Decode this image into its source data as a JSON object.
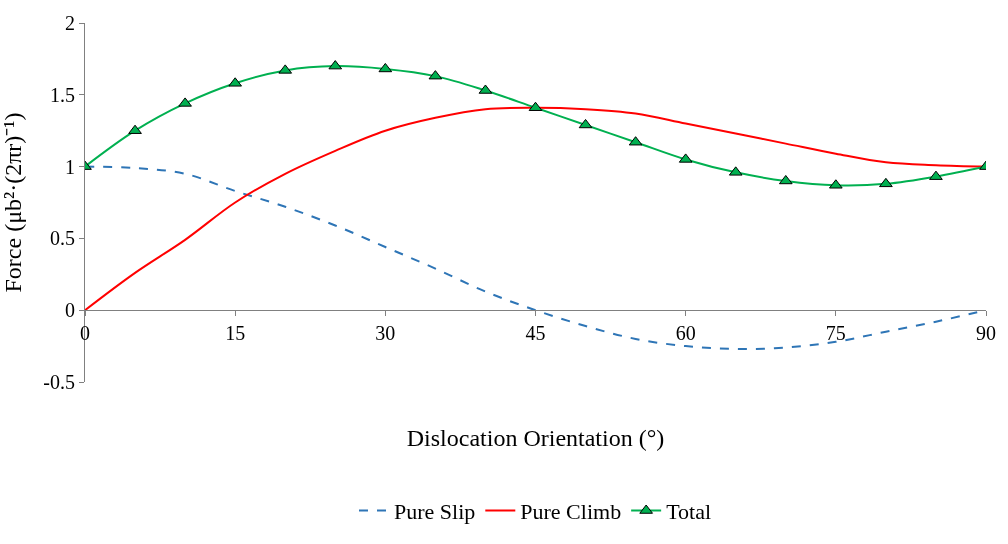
{
  "chart_data": {
    "type": "line",
    "xlabel": "Dislocation Orientation (°)",
    "ylabel": "Force (μb²·(2πr)⁻¹)",
    "x": [
      0,
      5,
      10,
      15,
      20,
      25,
      30,
      35,
      40,
      45,
      50,
      55,
      60,
      65,
      70,
      75,
      80,
      85,
      90
    ],
    "series": [
      {
        "name": "Pure Slip",
        "color": "#2e75b6",
        "line_style": "dashed",
        "marker": "none",
        "values": [
          1,
          0.99,
          0.95,
          0.83,
          0.72,
          0.59,
          0.44,
          0.29,
          0.13,
          0,
          -0.11,
          -0.2,
          -0.25,
          -0.27,
          -0.26,
          -0.22,
          -0.15,
          -0.08,
          0
        ]
      },
      {
        "name": "Pure Climb",
        "color": "#ff0000",
        "line_style": "solid",
        "marker": "none",
        "values": [
          0,
          0.26,
          0.49,
          0.75,
          0.95,
          1.11,
          1.25,
          1.34,
          1.4,
          1.41,
          1.4,
          1.37,
          1.3,
          1.23,
          1.16,
          1.09,
          1.03,
          1.01,
          1
        ]
      },
      {
        "name": "Total",
        "color": "#00b050",
        "line_style": "solid",
        "marker": "triangle",
        "values": [
          1,
          1.25,
          1.44,
          1.58,
          1.67,
          1.7,
          1.68,
          1.63,
          1.53,
          1.41,
          1.29,
          1.17,
          1.05,
          0.96,
          0.9,
          0.87,
          0.88,
          0.93,
          1
        ]
      }
    ],
    "xlim": [
      0,
      90
    ],
    "xticks": [
      0,
      15,
      30,
      45,
      60,
      75,
      90
    ],
    "ylim": [
      -0.5,
      2
    ],
    "yticks": [
      -0.5,
      0,
      0.5,
      1,
      1.5,
      2
    ],
    "legend": "bottom"
  }
}
